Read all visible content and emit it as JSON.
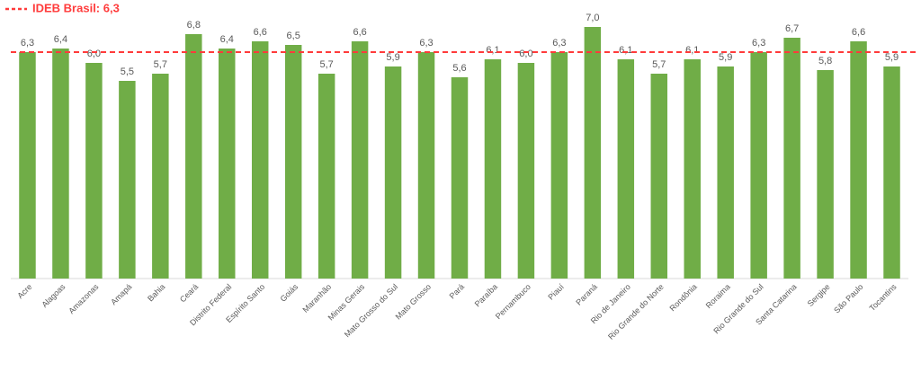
{
  "chart_data": {
    "type": "bar",
    "categories": [
      "Acre",
      "Alagoas",
      "Amazonas",
      "Amapá",
      "Bahia",
      "Ceará",
      "Distrito Federal",
      "Espírito Santo",
      "Goiás",
      "Maranhão",
      "Minas Gerais",
      "Mato Grosso do Sul",
      "Mato Grosso",
      "Pará",
      "Paraíba",
      "Pernambuco",
      "Piauí",
      "Paraná",
      "Rio de Janeiro",
      "Rio Grande do Norte",
      "Rondônia",
      "Roraima",
      "Rio Grande do Sul",
      "Santa Catarina",
      "Sergipe",
      "São Paulo",
      "Tocantins"
    ],
    "values": [
      6.3,
      6.4,
      6.0,
      5.5,
      5.7,
      6.8,
      6.4,
      6.6,
      6.5,
      5.7,
      6.6,
      5.9,
      6.3,
      5.6,
      6.1,
      6.0,
      6.3,
      7.0,
      6.1,
      5.7,
      6.1,
      5.9,
      6.3,
      6.7,
      5.8,
      6.6,
      5.9
    ],
    "value_labels": [
      "6,3",
      "6,4",
      "6,0",
      "5,5",
      "5,7",
      "6,8",
      "6,4",
      "6,6",
      "6,5",
      "5,7",
      "6,6",
      "5,9",
      "6,3",
      "5,6",
      "6,1",
      "6,0",
      "6,3",
      "7,0",
      "6,1",
      "5,7",
      "6,1",
      "5,9",
      "6,3",
      "6,7",
      "5,8",
      "6,6",
      "5,9"
    ],
    "color": "#70ad47",
    "ylim": [
      0,
      7
    ],
    "reference_line": {
      "label": "IDEB Brasil: 6,3",
      "value": 6.3,
      "color": "#ff3b3b"
    }
  }
}
